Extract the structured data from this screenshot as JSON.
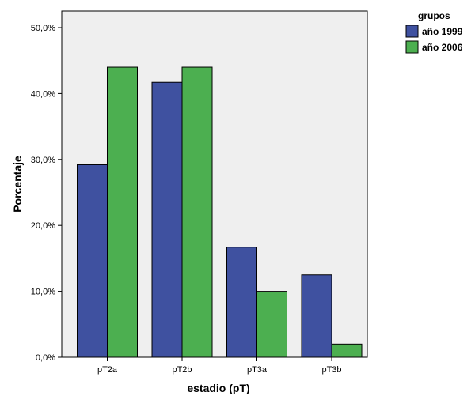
{
  "chart_data": {
    "type": "bar",
    "categories": [
      "pT2a",
      "pT2b",
      "pT3a",
      "pT3b"
    ],
    "series": [
      {
        "name": "año 1999",
        "values": [
          29.2,
          41.7,
          16.7,
          12.5
        ],
        "color": "#3f51a0"
      },
      {
        "name": "año 2006",
        "values": [
          44.0,
          44.0,
          10.0,
          2.0
        ],
        "color": "#4caf50"
      }
    ],
    "xlabel": "estadio (pT)",
    "ylabel": "Porcentaje",
    "ylim": [
      0,
      50
    ],
    "yticks": [
      "0,0%",
      "10,0%",
      "20,0%",
      "30,0%",
      "40,0%",
      "50,0%"
    ],
    "ytick_values": [
      0,
      10,
      20,
      30,
      40,
      50
    ],
    "legend_title": "grupos",
    "legend_position": "top-right",
    "plot_background": "#efefef",
    "grid": false
  }
}
